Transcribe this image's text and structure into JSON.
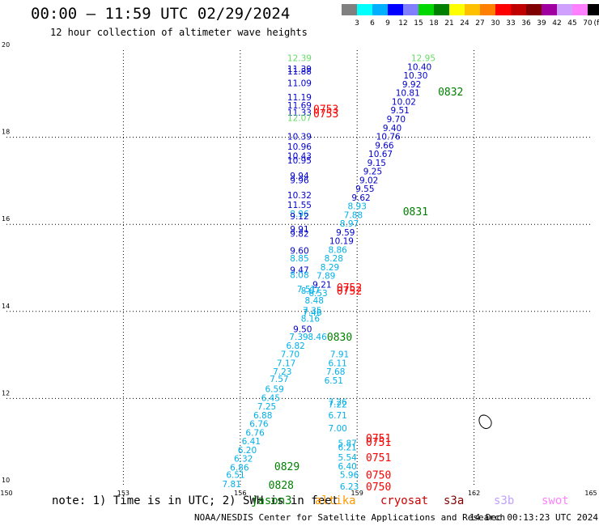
{
  "header": {
    "title": "00:00 – 11:59 UTC 02/29/2024",
    "subtitle": "12 hour collection of altimeter wave heights"
  },
  "legend": {
    "colors": [
      "#808080",
      "#00ffff",
      "#00b0ff",
      "#0000ff",
      "#8080ff",
      "#00d800",
      "#008000",
      "#ffff00",
      "#ffc000",
      "#ff8000",
      "#ff0000",
      "#c00000",
      "#800000",
      "#a000a0",
      "#d0a0ff",
      "#ff80ff",
      "#000000"
    ],
    "labels": [
      "3",
      "6",
      "9",
      "12",
      "15",
      "18",
      "21",
      "24",
      "27",
      "30",
      "33",
      "36",
      "39",
      "42",
      "45",
      "70"
    ],
    "unit": "(ft)"
  },
  "map": {
    "lon_ticks": [
      "150",
      "153",
      "156",
      "159",
      "162",
      "165"
    ],
    "lat_ticks": [
      "20",
      "18",
      "16",
      "14",
      "12",
      "10"
    ]
  },
  "chart_data": {
    "type": "scatter",
    "xlim": [
      150,
      165
    ],
    "ylim": [
      10,
      20
    ],
    "grid": true,
    "palette": {
      "lime": "#66dd66",
      "blue": "#0000cc",
      "sky": "#00b0e8",
      "green": "#008000",
      "red": "#ff0000"
    },
    "points": [
      {
        "lon": 157.52,
        "lat": 19.82,
        "label": "12.39",
        "color": "lime"
      },
      {
        "lon": 157.52,
        "lat": 19.57,
        "label": "11.39",
        "color": "blue"
      },
      {
        "lon": 157.52,
        "lat": 19.52,
        "label": "11.88",
        "color": "blue"
      },
      {
        "lon": 157.52,
        "lat": 19.25,
        "label": "11.09",
        "color": "blue"
      },
      {
        "lon": 157.52,
        "lat": 18.92,
        "label": "11.19",
        "color": "blue"
      },
      {
        "lon": 157.52,
        "lat": 18.74,
        "label": "11.69",
        "color": "blue"
      },
      {
        "lon": 157.52,
        "lat": 18.57,
        "label": "11.33",
        "color": "blue"
      },
      {
        "lon": 157.52,
        "lat": 18.45,
        "label": "12.07",
        "color": "lime"
      },
      {
        "lon": 157.52,
        "lat": 18.02,
        "label": "10.39",
        "color": "blue"
      },
      {
        "lon": 157.52,
        "lat": 17.79,
        "label": "10.96",
        "color": "blue"
      },
      {
        "lon": 157.52,
        "lat": 17.57,
        "label": "10.43",
        "color": "blue"
      },
      {
        "lon": 157.52,
        "lat": 17.47,
        "label": "10.95",
        "color": "blue"
      },
      {
        "lon": 157.52,
        "lat": 17.12,
        "label": "9.94",
        "color": "blue"
      },
      {
        "lon": 157.52,
        "lat": 17.02,
        "label": "9.96",
        "color": "blue"
      },
      {
        "lon": 157.52,
        "lat": 16.67,
        "label": "10.32",
        "color": "blue"
      },
      {
        "lon": 157.52,
        "lat": 16.45,
        "label": "11.55",
        "color": "blue"
      },
      {
        "lon": 157.52,
        "lat": 16.25,
        "label": "8.96",
        "color": "sky"
      },
      {
        "lon": 157.52,
        "lat": 16.19,
        "label": "9.12",
        "color": "blue"
      },
      {
        "lon": 157.52,
        "lat": 15.89,
        "label": "9.91",
        "color": "blue"
      },
      {
        "lon": 157.52,
        "lat": 15.79,
        "label": "9.82",
        "color": "blue"
      },
      {
        "lon": 157.52,
        "lat": 15.4,
        "label": "9.60",
        "color": "blue"
      },
      {
        "lon": 157.52,
        "lat": 15.22,
        "label": "8.85",
        "color": "sky"
      },
      {
        "lon": 157.52,
        "lat": 14.95,
        "label": "9.47",
        "color": "blue"
      },
      {
        "lon": 157.52,
        "lat": 14.84,
        "label": "8.08",
        "color": "sky"
      },
      {
        "lon": 157.7,
        "lat": 14.52,
        "label": "7.51",
        "color": "sky"
      },
      {
        "lon": 157.8,
        "lat": 14.48,
        "label": "8.07",
        "color": "sky"
      },
      {
        "lon": 157.9,
        "lat": 14.26,
        "label": "8.48",
        "color": "sky"
      },
      {
        "lon": 157.85,
        "lat": 14.02,
        "label": "7.35",
        "color": "sky"
      },
      {
        "lon": 157.85,
        "lat": 13.98,
        "label": "7.46",
        "color": "sky"
      },
      {
        "lon": 157.8,
        "lat": 13.84,
        "label": "8.16",
        "color": "sky"
      },
      {
        "lon": 157.6,
        "lat": 13.6,
        "label": "9.50",
        "color": "blue"
      },
      {
        "lon": 157.5,
        "lat": 13.42,
        "label": "7.39",
        "color": "sky"
      },
      {
        "lon": 157.98,
        "lat": 13.42,
        "label": "8.46",
        "color": "sky"
      },
      {
        "lon": 157.42,
        "lat": 13.22,
        "label": "6.82",
        "color": "sky"
      },
      {
        "lon": 157.28,
        "lat": 13.02,
        "label": "7.70",
        "color": "sky"
      },
      {
        "lon": 157.18,
        "lat": 12.82,
        "label": "7.17",
        "color": "sky"
      },
      {
        "lon": 157.08,
        "lat": 12.62,
        "label": "7.23",
        "color": "sky"
      },
      {
        "lon": 157.0,
        "lat": 12.45,
        "label": "7.57",
        "color": "sky"
      },
      {
        "lon": 156.88,
        "lat": 12.22,
        "label": "6.59",
        "color": "sky"
      },
      {
        "lon": 156.78,
        "lat": 12.02,
        "label": "6.45",
        "color": "sky"
      },
      {
        "lon": 156.68,
        "lat": 11.82,
        "label": "7.25",
        "color": "sky"
      },
      {
        "lon": 156.58,
        "lat": 11.62,
        "label": "6.88",
        "color": "sky"
      },
      {
        "lon": 156.48,
        "lat": 11.42,
        "label": "6.76",
        "color": "sky"
      },
      {
        "lon": 156.38,
        "lat": 11.22,
        "label": "6.76",
        "color": "sky"
      },
      {
        "lon": 156.28,
        "lat": 11.02,
        "label": "6.41",
        "color": "sky"
      },
      {
        "lon": 156.18,
        "lat": 10.82,
        "label": "6.20",
        "color": "sky"
      },
      {
        "lon": 156.08,
        "lat": 10.62,
        "label": "6.32",
        "color": "sky"
      },
      {
        "lon": 155.98,
        "lat": 10.42,
        "label": "6.86",
        "color": "sky"
      },
      {
        "lon": 155.88,
        "lat": 10.25,
        "label": "6.51",
        "color": "sky"
      },
      {
        "lon": 155.78,
        "lat": 10.04,
        "label": "7.81",
        "color": "sky"
      },
      {
        "lon": 160.7,
        "lat": 19.82,
        "label": "12.95",
        "color": "lime"
      },
      {
        "lon": 160.6,
        "lat": 19.62,
        "label": "10.40",
        "color": "blue"
      },
      {
        "lon": 160.5,
        "lat": 19.42,
        "label": "10.30",
        "color": "blue"
      },
      {
        "lon": 160.4,
        "lat": 19.22,
        "label": "9.92",
        "color": "blue"
      },
      {
        "lon": 160.3,
        "lat": 19.02,
        "label": "10.81",
        "color": "blue"
      },
      {
        "lon": 160.2,
        "lat": 18.82,
        "label": "10.02",
        "color": "blue"
      },
      {
        "lon": 160.1,
        "lat": 18.62,
        "label": "9.51",
        "color": "blue"
      },
      {
        "lon": 160.0,
        "lat": 18.42,
        "label": "9.70",
        "color": "blue"
      },
      {
        "lon": 159.9,
        "lat": 18.22,
        "label": "9.40",
        "color": "blue"
      },
      {
        "lon": 159.8,
        "lat": 18.02,
        "label": "10.76",
        "color": "blue"
      },
      {
        "lon": 159.7,
        "lat": 17.82,
        "label": "9.66",
        "color": "blue"
      },
      {
        "lon": 159.6,
        "lat": 17.62,
        "label": "10.67",
        "color": "blue"
      },
      {
        "lon": 159.5,
        "lat": 17.42,
        "label": "9.15",
        "color": "blue"
      },
      {
        "lon": 159.4,
        "lat": 17.22,
        "label": "9.25",
        "color": "blue"
      },
      {
        "lon": 159.3,
        "lat": 17.02,
        "label": "9.02",
        "color": "blue"
      },
      {
        "lon": 159.2,
        "lat": 16.82,
        "label": "9.55",
        "color": "blue"
      },
      {
        "lon": 159.1,
        "lat": 16.62,
        "label": "9.62",
        "color": "blue"
      },
      {
        "lon": 159.0,
        "lat": 16.42,
        "label": "8.93",
        "color": "sky"
      },
      {
        "lon": 158.9,
        "lat": 16.22,
        "label": "7.88",
        "color": "sky"
      },
      {
        "lon": 158.8,
        "lat": 16.02,
        "label": "8.97",
        "color": "sky"
      },
      {
        "lon": 158.7,
        "lat": 15.82,
        "label": "9.59",
        "color": "blue"
      },
      {
        "lon": 158.6,
        "lat": 15.62,
        "label": "10.19",
        "color": "blue"
      },
      {
        "lon": 158.5,
        "lat": 15.42,
        "label": "8.86",
        "color": "sky"
      },
      {
        "lon": 158.4,
        "lat": 15.22,
        "label": "8.28",
        "color": "sky"
      },
      {
        "lon": 158.3,
        "lat": 15.02,
        "label": "8.29",
        "color": "sky"
      },
      {
        "lon": 158.2,
        "lat": 14.82,
        "label": "7.89",
        "color": "sky"
      },
      {
        "lon": 158.1,
        "lat": 14.62,
        "label": "9.21",
        "color": "blue"
      },
      {
        "lon": 158.0,
        "lat": 14.42,
        "label": "6.53",
        "color": "sky"
      },
      {
        "lon": 158.55,
        "lat": 13.02,
        "label": "7.91",
        "color": "sky"
      },
      {
        "lon": 158.5,
        "lat": 12.82,
        "label": "6.11",
        "color": "sky"
      },
      {
        "lon": 158.45,
        "lat": 12.62,
        "label": "7.68",
        "color": "sky"
      },
      {
        "lon": 158.4,
        "lat": 12.42,
        "label": "6.51",
        "color": "sky"
      },
      {
        "lon": 158.5,
        "lat": 11.92,
        "label": "7.26",
        "color": "sky"
      },
      {
        "lon": 158.5,
        "lat": 11.87,
        "label": "7.22",
        "color": "sky"
      },
      {
        "lon": 158.5,
        "lat": 11.62,
        "label": "6.71",
        "color": "sky"
      },
      {
        "lon": 158.5,
        "lat": 11.32,
        "label": "7.00",
        "color": "sky"
      },
      {
        "lon": 158.75,
        "lat": 10.98,
        "label": "5.87",
        "color": "sky"
      },
      {
        "lon": 158.75,
        "lat": 10.88,
        "label": "6.21",
        "color": "sky"
      },
      {
        "lon": 158.75,
        "lat": 10.65,
        "label": "5.54",
        "color": "sky"
      },
      {
        "lon": 158.75,
        "lat": 10.45,
        "label": "6.40",
        "color": "sky"
      },
      {
        "lon": 158.8,
        "lat": 10.25,
        "label": "5.96",
        "color": "sky"
      },
      {
        "lon": 158.8,
        "lat": 9.98,
        "label": "6.23",
        "color": "sky"
      }
    ],
    "time_labels": [
      {
        "lon": 158.2,
        "lat": 18.65,
        "label": "0753",
        "color": "red"
      },
      {
        "lon": 158.2,
        "lat": 18.55,
        "label": "0753",
        "color": "red"
      },
      {
        "lon": 161.4,
        "lat": 19.05,
        "label": "0832",
        "color": "green"
      },
      {
        "lon": 160.5,
        "lat": 16.3,
        "label": "0831",
        "color": "green"
      },
      {
        "lon": 158.8,
        "lat": 14.55,
        "label": "0752",
        "color": "red"
      },
      {
        "lon": 158.8,
        "lat": 14.48,
        "label": "0752",
        "color": "red"
      },
      {
        "lon": 158.55,
        "lat": 13.42,
        "label": "0830",
        "color": "green"
      },
      {
        "lon": 159.55,
        "lat": 11.1,
        "label": "0751",
        "color": "red"
      },
      {
        "lon": 159.55,
        "lat": 11.0,
        "label": "0751",
        "color": "red"
      },
      {
        "lon": 159.55,
        "lat": 10.65,
        "label": "0751",
        "color": "red"
      },
      {
        "lon": 159.55,
        "lat": 10.25,
        "label": "0750",
        "color": "red"
      },
      {
        "lon": 159.55,
        "lat": 9.98,
        "label": "0750",
        "color": "red"
      },
      {
        "lon": 157.2,
        "lat": 10.45,
        "label": "0829",
        "color": "green"
      },
      {
        "lon": 157.05,
        "lat": 10.02,
        "label": "0828",
        "color": "green"
      }
    ]
  },
  "footer": {
    "note": "note: 1) Time is in UTC; 2) SWH is in feet",
    "satellites": [
      {
        "name": "jason3",
        "color": "#008000",
        "left": 310
      },
      {
        "name": "altika",
        "color": "#ff9900",
        "left": 389
      },
      {
        "name": "cryosat",
        "color": "#cc0000",
        "left": 470
      },
      {
        "name": "s3a",
        "color": "#800000",
        "left": 548
      },
      {
        "name": "s3b",
        "color": "#c0a0ff",
        "left": 610
      },
      {
        "name": "swot",
        "color": "#ff80ff",
        "left": 669
      }
    ],
    "credit": "NOAA/NESDIS Center for Satellite Applications and Research",
    "timestamp": "14 Dec 00:13:23 UTC 2024"
  }
}
